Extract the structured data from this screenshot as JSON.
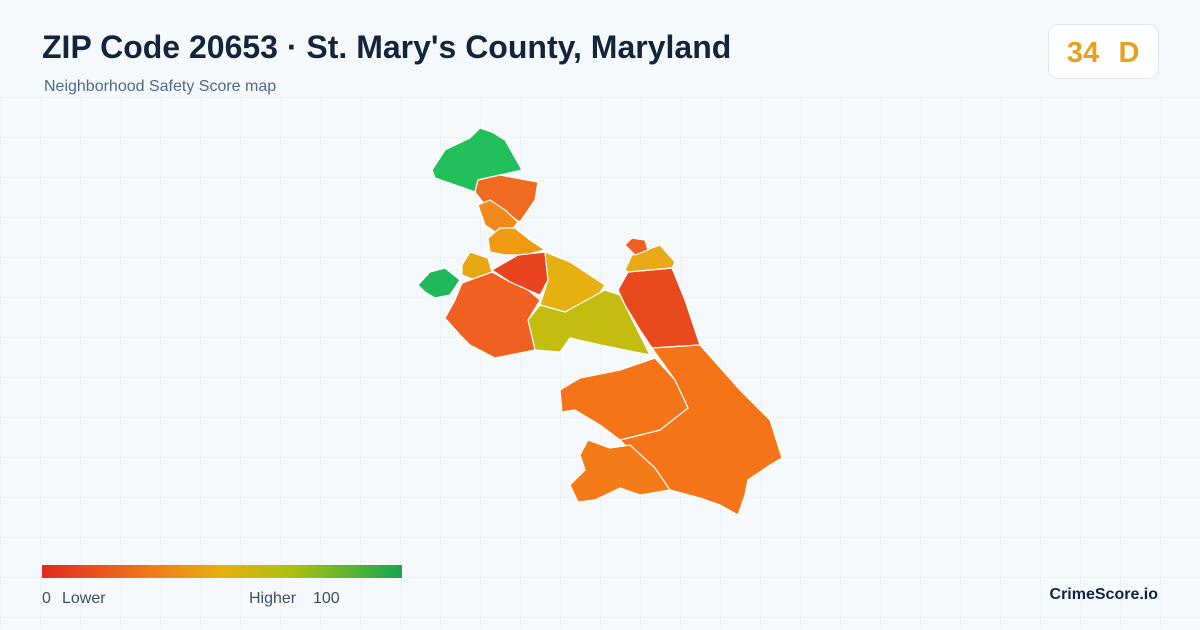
{
  "header": {
    "title": "ZIP Code 20653 · St. Mary's County, Maryland",
    "subtitle": "Neighborhood Safety Score map"
  },
  "score": {
    "value": 34,
    "grade": "D"
  },
  "legend": {
    "min": 0,
    "low_label": "Lower",
    "high_label": "Higher",
    "max": 100
  },
  "brand": "CrimeScore.io"
}
